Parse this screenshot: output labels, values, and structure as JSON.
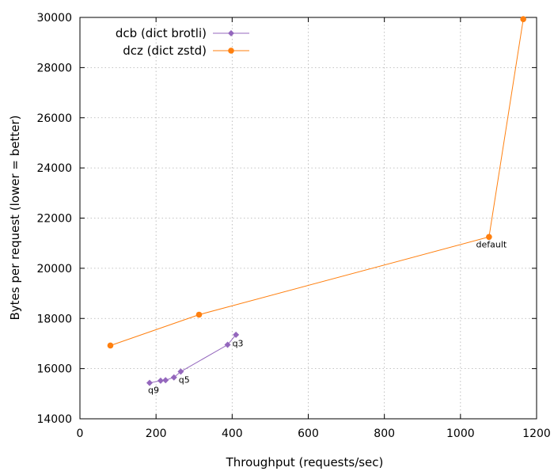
{
  "chart_data": {
    "type": "line",
    "title": "",
    "xlabel": "Throughput (requests/sec)",
    "ylabel": "Bytes per request (lower = better)",
    "xlim": [
      0,
      1200
    ],
    "ylim": [
      14000,
      30000
    ],
    "xticks": [
      0,
      200,
      400,
      600,
      800,
      1000,
      1200
    ],
    "yticks": [
      14000,
      16000,
      18000,
      20000,
      22000,
      24000,
      26000,
      28000,
      30000
    ],
    "grid": true,
    "legend_position": "top-left",
    "series": [
      {
        "name": "dcb (dict brotli)",
        "color": "#9467bd",
        "marker": "diamond",
        "points": [
          {
            "x": 410,
            "y": 17350,
            "label": ""
          },
          {
            "x": 388,
            "y": 16950,
            "label": "q3"
          },
          {
            "x": 265,
            "y": 15880,
            "label": ""
          },
          {
            "x": 247,
            "y": 15650,
            "label": "q5"
          },
          {
            "x": 225,
            "y": 15540,
            "label": ""
          },
          {
            "x": 212,
            "y": 15520,
            "label": ""
          },
          {
            "x": 183,
            "y": 15430,
            "label": "q9"
          }
        ]
      },
      {
        "name": "dcz (dict zstd)",
        "color": "#ff7f0e",
        "marker": "circle",
        "points": [
          {
            "x": 80,
            "y": 16920,
            "label": ""
          },
          {
            "x": 313,
            "y": 18150,
            "label": ""
          },
          {
            "x": 1075,
            "y": 21250,
            "label": "default"
          },
          {
            "x": 1165,
            "y": 29930,
            "label": ""
          }
        ]
      }
    ]
  }
}
